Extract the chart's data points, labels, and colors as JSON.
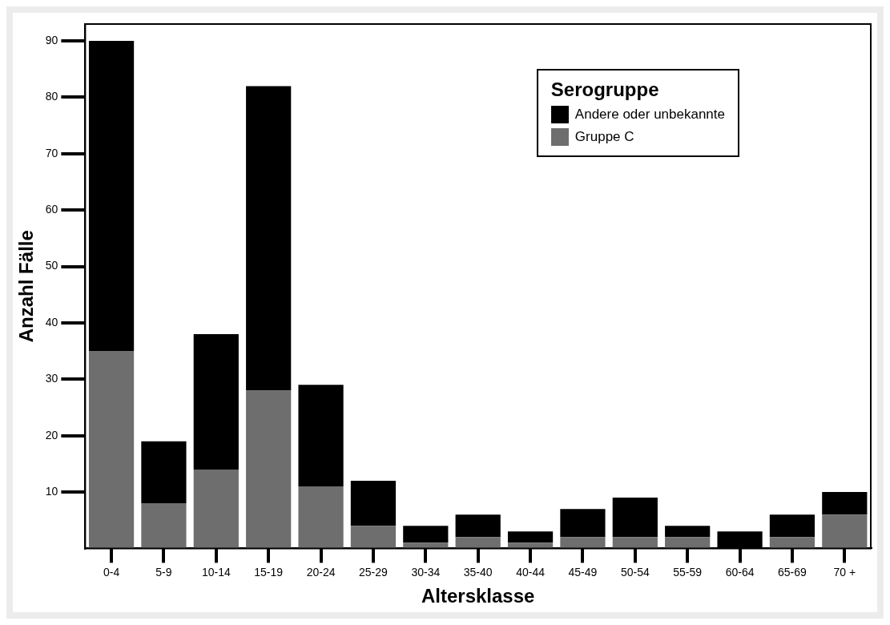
{
  "chart_data": {
    "type": "bar",
    "xlabel": "Altersklasse",
    "ylabel": "Anzahl Fälle",
    "legend_title": "Serogruppe",
    "categories": [
      "0-4",
      "5-9",
      "10-14",
      "15-19",
      "20-24",
      "25-29",
      "30-34",
      "35-40",
      "40-44",
      "45-49",
      "50-54",
      "55-59",
      "60-64",
      "65-69",
      "70 +"
    ],
    "series": [
      {
        "name": "Gruppe C",
        "color": "#6e6e6e",
        "values": [
          35,
          8,
          14,
          28,
          11,
          4,
          1,
          2,
          1,
          2,
          2,
          2,
          0,
          2,
          6
        ]
      },
      {
        "name": "Andere oder unbekannte",
        "color": "#000000",
        "values": [
          55,
          11,
          24,
          54,
          18,
          8,
          3,
          4,
          2,
          5,
          7,
          2,
          3,
          4,
          4
        ]
      }
    ],
    "stacked": true,
    "ylim": [
      0,
      93
    ],
    "yticks": [
      10,
      20,
      30,
      40,
      50,
      60,
      70,
      80,
      90
    ],
    "grid": false,
    "legend": "top right"
  }
}
